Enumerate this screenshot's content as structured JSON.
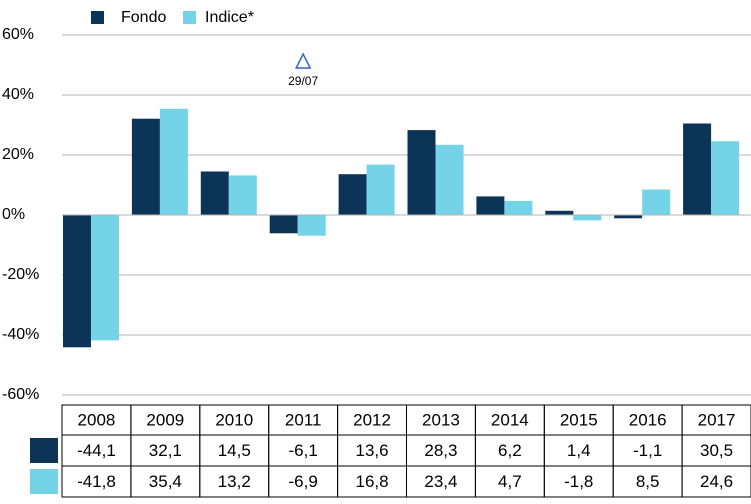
{
  "chart_data": {
    "type": "bar",
    "categories": [
      "2008",
      "2009",
      "2010",
      "2011",
      "2012",
      "2013",
      "2014",
      "2015",
      "2016",
      "2017"
    ],
    "series": [
      {
        "name": "Fondo",
        "color": "#0c3457",
        "values": [
          -44.1,
          32.1,
          14.5,
          -6.1,
          13.6,
          28.3,
          6.2,
          1.4,
          -1.1,
          30.5
        ],
        "value_labels": [
          "-44,1",
          "32,1",
          "14,5",
          "-6,1",
          "13,6",
          "28,3",
          "6,2",
          "1,4",
          "-1,1",
          "30,5"
        ]
      },
      {
        "name": "Indice*",
        "color": "#74d3e6",
        "values": [
          -41.8,
          35.4,
          13.2,
          -6.9,
          16.8,
          23.4,
          4.7,
          -1.8,
          8.5,
          24.6
        ],
        "value_labels": [
          "-41,8",
          "35,4",
          "13,2",
          "-6,9",
          "16,8",
          "23,4",
          "4,7",
          "-1,8",
          "8,5",
          "24,6"
        ]
      }
    ],
    "ylim": [
      -60,
      60
    ],
    "yticks": [
      {
        "value": -60,
        "label": "-60%"
      },
      {
        "value": -40,
        "label": "-40%"
      },
      {
        "value": -20,
        "label": "-20%"
      },
      {
        "value": 0,
        "label": "0%"
      },
      {
        "value": 20,
        "label": "20%"
      },
      {
        "value": 40,
        "label": "40%"
      },
      {
        "value": 60,
        "label": "60%"
      }
    ],
    "grid": true,
    "annotation": {
      "text": "29/07",
      "category": "2011"
    }
  }
}
